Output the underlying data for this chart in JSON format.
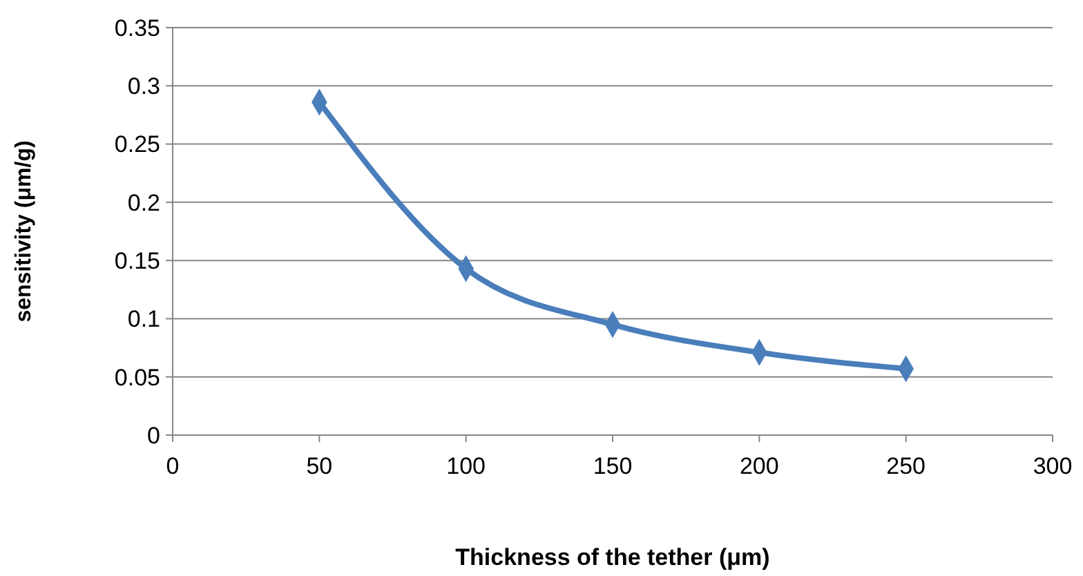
{
  "chart_data": {
    "type": "line",
    "xlabel": "Thickness of the tether (μm)",
    "ylabel": "sensitivity (μm/g)",
    "x": [
      50,
      100,
      150,
      200,
      250
    ],
    "series": [
      {
        "color": "#4a7ebb",
        "values": [
          0.286,
          0.143,
          0.095,
          0.071,
          0.057
        ]
      }
    ],
    "xlim": [
      0,
      300
    ],
    "xticks": [
      0,
      50,
      100,
      150,
      200,
      250,
      300
    ],
    "ylim": [
      0,
      0.35
    ],
    "yticks": [
      0,
      0.05,
      0.1,
      0.15,
      0.2,
      0.25,
      0.3,
      0.35
    ],
    "grid": "y",
    "marker": "diamond",
    "line_style": "solid"
  }
}
